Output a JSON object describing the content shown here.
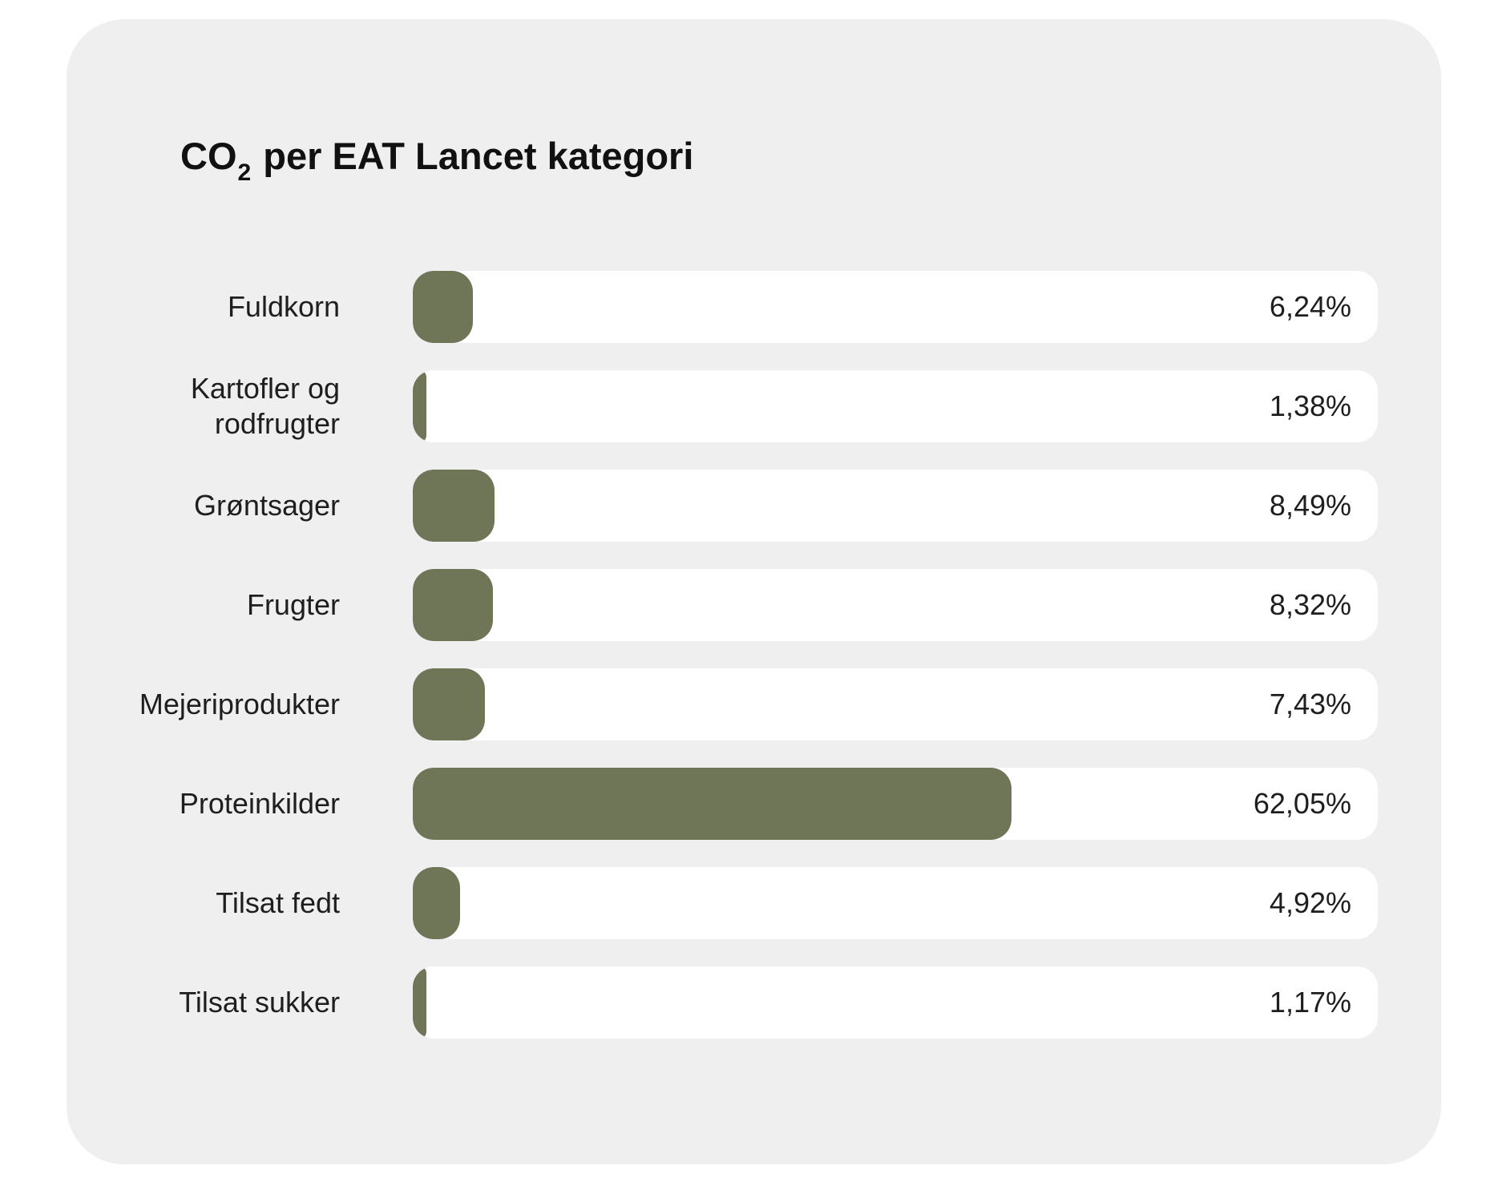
{
  "title": {
    "prefix": "CO",
    "subscript": "2",
    "suffix": "per EAT Lancet kategori"
  },
  "colors": {
    "card_background": "#efefef",
    "track": "#ffffff",
    "bar": "#6f7557"
  },
  "chart_data": {
    "type": "bar",
    "orientation": "horizontal",
    "title": "CO2 per EAT Lancet kategori",
    "categories": [
      "Fuldkorn",
      "Kartofler og rodfrugter",
      "Grøntsager",
      "Frugter",
      "Mejeriprodukter",
      "Proteinkilder",
      "Tilsat fedt",
      "Tilsat sukker"
    ],
    "values": [
      6.24,
      1.38,
      8.49,
      8.32,
      7.43,
      62.05,
      4.92,
      1.17
    ],
    "value_labels": [
      "6,24%",
      "1,38%",
      "8,49%",
      "8,32%",
      "7,43%",
      "62,05%",
      "4,92%",
      "1,17%"
    ],
    "unit": "%",
    "xlim": [
      0,
      100
    ],
    "grid": false,
    "legend": "none"
  }
}
